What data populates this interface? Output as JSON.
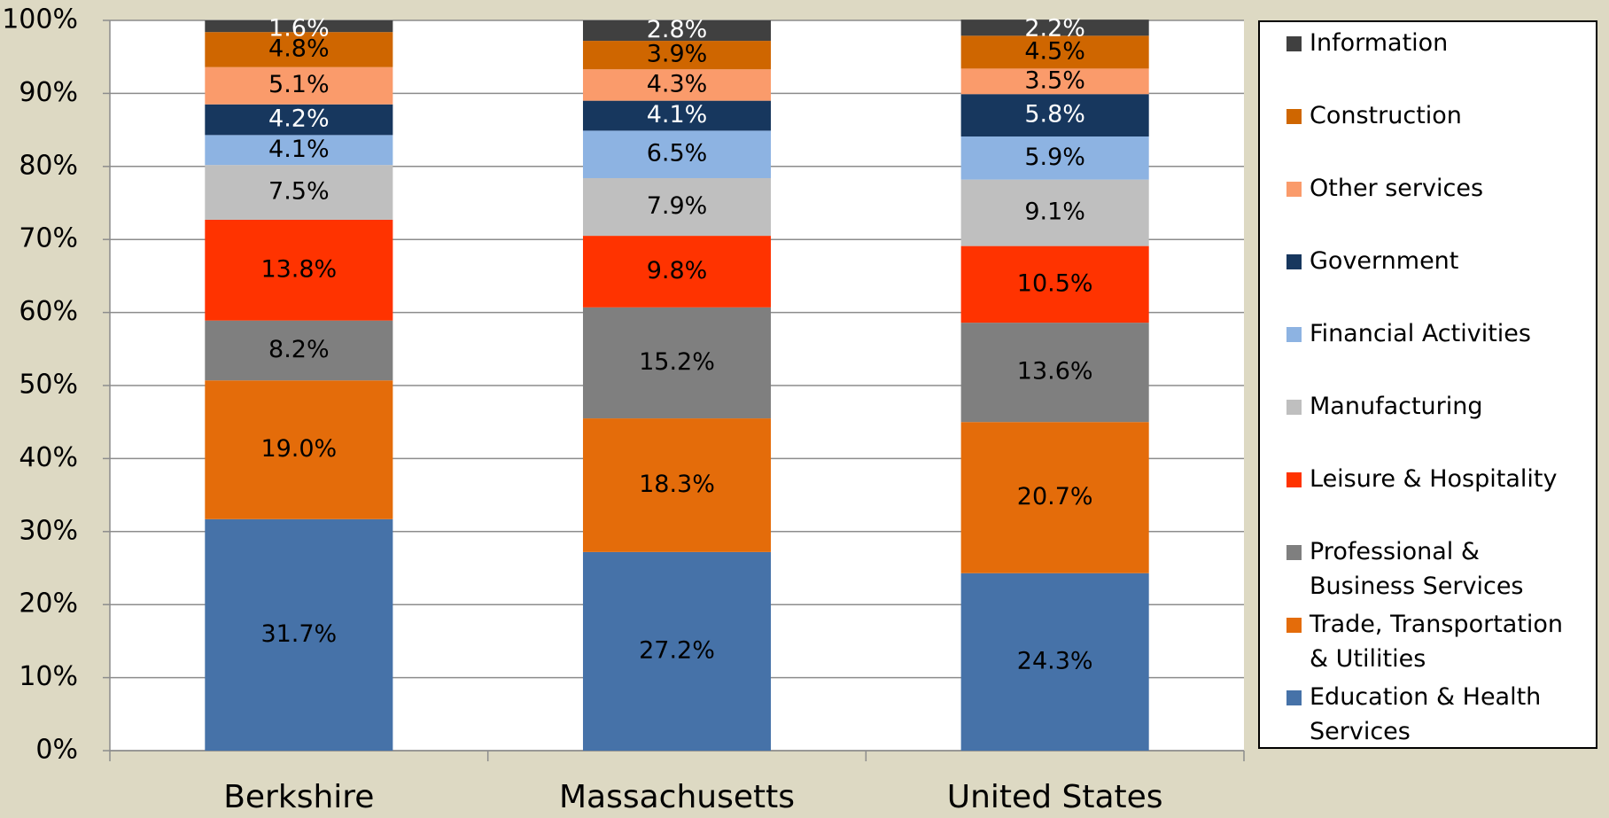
{
  "chart_data": {
    "type": "stacked_bar",
    "categories": [
      "Berkshire",
      "Massachusetts",
      "United States"
    ],
    "ylim": [
      0,
      100
    ],
    "yticks": [
      {
        "value": 0,
        "label": "0%"
      },
      {
        "value": 10,
        "label": "10%"
      },
      {
        "value": 20,
        "label": "20%"
      },
      {
        "value": 30,
        "label": "30%"
      },
      {
        "value": 40,
        "label": "40%"
      },
      {
        "value": 50,
        "label": "50%"
      },
      {
        "value": 60,
        "label": "60%"
      },
      {
        "value": 70,
        "label": "70%"
      },
      {
        "value": 80,
        "label": "80%"
      },
      {
        "value": 90,
        "label": "90%"
      },
      {
        "value": 100,
        "label": "100%"
      }
    ],
    "grid": true,
    "legend": "right",
    "series": [
      {
        "name": "Education & Health Services",
        "color": "#4672a8",
        "values": [
          31.7,
          27.2,
          24.3
        ],
        "value_labels": [
          "31.7%",
          "27.2%",
          "24.3%"
        ]
      },
      {
        "name": "Trade, Transportation & Utilities",
        "color": "#e46c0a",
        "values": [
          19.0,
          18.3,
          20.7
        ],
        "value_labels": [
          "19.0%",
          "18.3%",
          "20.7%"
        ]
      },
      {
        "name": "Professional & Business Services",
        "color": "#7f7f7f",
        "values": [
          8.2,
          15.2,
          13.6
        ],
        "value_labels": [
          "8.2%",
          "15.2%",
          "13.6%"
        ]
      },
      {
        "name": "Leisure & Hospitality",
        "color": "#ff3300",
        "values": [
          13.8,
          9.8,
          10.5
        ],
        "value_labels": [
          "13.8%",
          "9.8%",
          "10.5%"
        ]
      },
      {
        "name": "Manufacturing",
        "color": "#bfbfbf",
        "values": [
          7.5,
          7.9,
          9.1
        ],
        "value_labels": [
          "7.5%",
          "7.9%",
          "9.1%"
        ]
      },
      {
        "name": "Financial Activities",
        "color": "#8db3e2",
        "values": [
          4.1,
          6.5,
          5.9
        ],
        "value_labels": [
          "4.1%",
          "6.5%",
          "5.9%"
        ]
      },
      {
        "name": "Government",
        "color": "#17375e",
        "values": [
          4.2,
          4.1,
          5.8
        ],
        "value_labels": [
          "4.2%",
          "4.1%",
          "5.8%"
        ]
      },
      {
        "name": "Other services",
        "color": "#fa9b6b",
        "values": [
          5.1,
          4.3,
          3.5
        ],
        "value_labels": [
          "5.1%",
          "4.3%",
          "3.5%"
        ]
      },
      {
        "name": "Construction",
        "color": "#cf6600",
        "values": [
          4.8,
          3.9,
          4.5
        ],
        "value_labels": [
          "4.8%",
          "3.9%",
          "4.5%"
        ]
      },
      {
        "name": "Information",
        "color": "#404040",
        "values": [
          1.6,
          2.8,
          2.2
        ],
        "value_labels": [
          "1.6%",
          "2.8%",
          "2.2%"
        ]
      }
    ]
  }
}
